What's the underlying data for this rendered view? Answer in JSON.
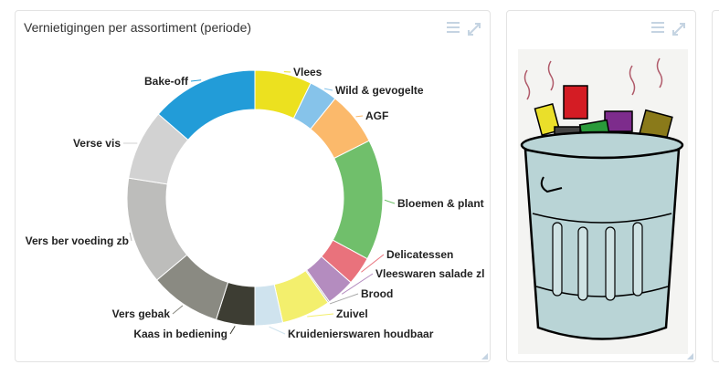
{
  "chart_panel": {
    "title": "Vernietigingen per assortiment (periode)",
    "icons": [
      "menu-icon",
      "expand-icon",
      "resize-grip-icon"
    ]
  },
  "image_panel": {
    "icons": [
      "menu-icon",
      "expand-icon",
      "trash-can-icon",
      "resize-grip-icon"
    ]
  },
  "chart_data": {
    "type": "pie",
    "variant": "donut",
    "title": "Vernietigingen per assortiment (periode)",
    "unit": "share of total (%)",
    "legend": "none",
    "categories": [
      "Vlees",
      "Wild & gevogelte",
      "AGF",
      "Bloemen & plant",
      "Delicatessen",
      "Vleeswaren salade zl",
      "Brood",
      "Zuivel",
      "Kruidenierswaren houdbaar",
      "Kaas in bediening",
      "Vers gebak",
      "Vers ber voeding zb",
      "Verse vis",
      "Bake-off"
    ],
    "values": [
      7.2,
      3.6,
      6.8,
      15.3,
      3.6,
      3.6,
      0.2,
      6.2,
      3.5,
      4.9,
      9.0,
      13.6,
      8.9,
      13.6
    ],
    "colors": [
      "#ece11f",
      "#86c3ea",
      "#fbb96b",
      "#70bf6b",
      "#e9727c",
      "#b48cbf",
      "#a8a8a8",
      "#f3ef6d",
      "#cfe3ee",
      "#3d3d33",
      "#8a8a82",
      "#bdbdbb",
      "#d2d2d2",
      "#229cd8"
    ],
    "start_angle_deg": 0,
    "direction": "clockwise"
  }
}
